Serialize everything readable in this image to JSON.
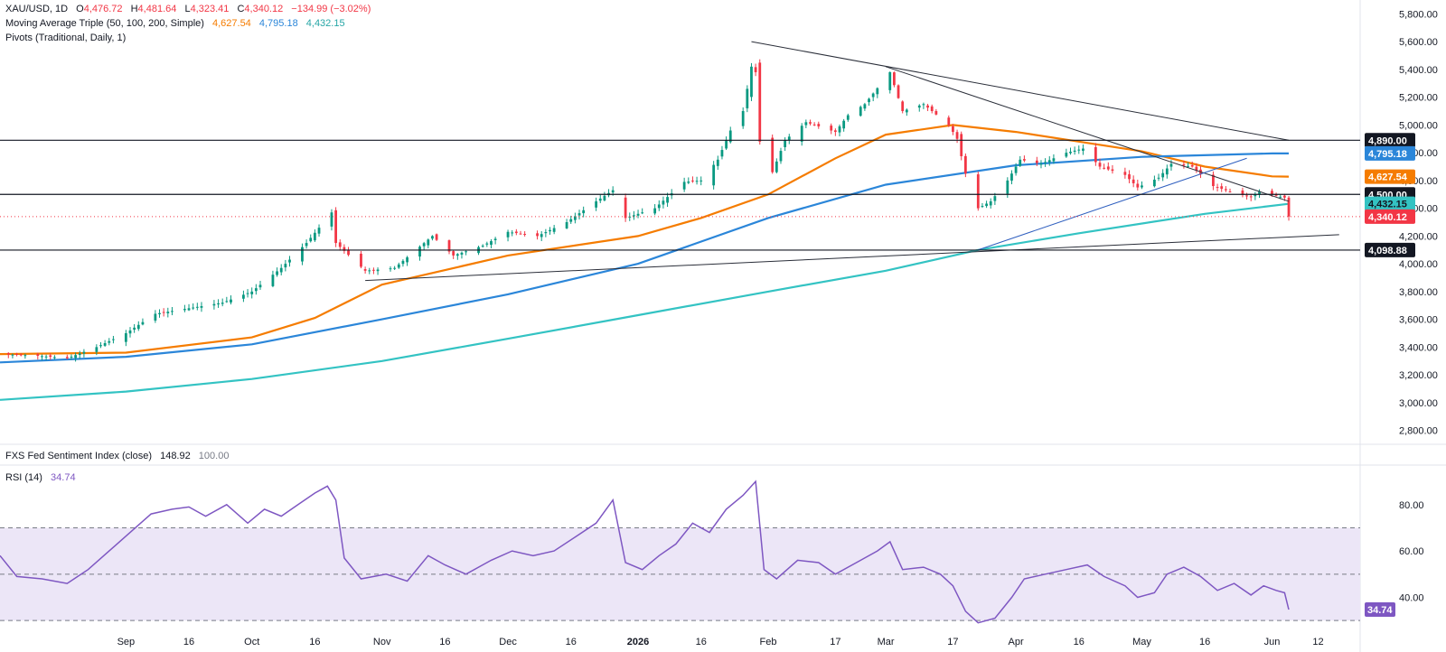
{
  "legend": {
    "symbol": "XAU/USD, 1D",
    "o_label": "O",
    "o_val": "4,476.72",
    "h_label": "H",
    "h_val": "4,481.64",
    "l_label": "L",
    "l_val": "4,323.41",
    "c_label": "C",
    "c_val": "4,340.12",
    "chg": "−134.99 (−3.02%)",
    "ma_name": "Moving Average Triple (50, 100, 200, Simple)",
    "ma50_val": "4,627.54",
    "ma100_val": "4,795.18",
    "ma200_val": "4,432.15",
    "pivots": "Pivots (Traditional, Daily, 1)",
    "fxs_name": "FXS Fed Sentiment Index (close)",
    "fxs_val1": "148.92",
    "fxs_val2": "100.00",
    "rsi_name": "RSI (14)",
    "rsi_val": "34.74"
  },
  "colors": {
    "up": "#089981",
    "down": "#f23645",
    "ma50": "#f57c00",
    "ma100": "#2b86d9",
    "ma200": "#33c3c3",
    "rsi": "#7e57c2",
    "rsi_band": "#ece6f7",
    "trend": "#2a2e39",
    "trend_blue": "#2f5fbf"
  },
  "chart_data": [
    {
      "type": "candlestick",
      "title": "XAU/USD, 1D",
      "ylim": [
        2700,
        5900
      ],
      "y_ticks": [
        2800,
        3000,
        3200,
        3400,
        3600,
        3800,
        4000,
        4200,
        4400,
        4600,
        4800,
        5000,
        5200,
        5400,
        5600,
        5800
      ],
      "y_tick_labels": [
        "2,800.00",
        "3,000.00",
        "3,200.00",
        "3,400.00",
        "3,600.00",
        "3,800.00",
        "4,000.00",
        "4,200.00",
        "4,400.00",
        "4,600.00",
        "4,800.00",
        "5,000.00",
        "5,200.00",
        "5,400.00",
        "5,600.00",
        "5,800.00"
      ],
      "x_tick_labels": [
        "Sep",
        "16",
        "Oct",
        "16",
        "Nov",
        "16",
        "Dec",
        "16",
        "2026",
        "16",
        "Feb",
        "17",
        "Mar",
        "17",
        "Apr",
        "16",
        "May",
        "16",
        "Jun",
        "12"
      ],
      "x_tick_dates": [
        "2025-09-01",
        "2025-09-16",
        "2025-10-01",
        "2025-10-16",
        "2025-11-01",
        "2025-11-16",
        "2025-12-01",
        "2025-12-16",
        "2026-01-01",
        "2026-01-16",
        "2026-02-01",
        "2026-02-17",
        "2026-03-01",
        "2026-03-17",
        "2026-04-01",
        "2026-04-16",
        "2026-05-01",
        "2026-05-16",
        "2026-06-01",
        "2026-06-12"
      ],
      "x_range": [
        "2025-08-02",
        "2026-06-22"
      ],
      "last_date": "2026-06-05",
      "close_path": [
        [
          "2025-08-02",
          3350
        ],
        [
          "2025-08-10",
          3340
        ],
        [
          "2025-08-18",
          3320
        ],
        [
          "2025-08-25",
          3400
        ],
        [
          "2025-09-01",
          3500
        ],
        [
          "2025-09-08",
          3640
        ],
        [
          "2025-09-16",
          3680
        ],
        [
          "2025-09-24",
          3720
        ],
        [
          "2025-10-01",
          3800
        ],
        [
          "2025-10-08",
          3970
        ],
        [
          "2025-10-14",
          4150
        ],
        [
          "2025-10-20",
          4370
        ],
        [
          "2025-10-21",
          4150
        ],
        [
          "2025-10-28",
          3950
        ],
        [
          "2025-11-04",
          3970
        ],
        [
          "2025-11-13",
          4200
        ],
        [
          "2025-11-18",
          4060
        ],
        [
          "2025-11-25",
          4130
        ],
        [
          "2025-12-01",
          4230
        ],
        [
          "2025-12-08",
          4200
        ],
        [
          "2025-12-15",
          4300
        ],
        [
          "2025-12-22",
          4450
        ],
        [
          "2025-12-26",
          4530
        ],
        [
          "2025-12-29",
          4330
        ],
        [
          "2026-01-05",
          4400
        ],
        [
          "2026-01-12",
          4590
        ],
        [
          "2026-01-16",
          4600
        ],
        [
          "2026-01-20",
          4750
        ],
        [
          "2026-01-23",
          4960
        ],
        [
          "2026-01-26",
          5100
        ],
        [
          "2026-01-28",
          5420
        ],
        [
          "2026-01-29",
          5380
        ],
        [
          "2026-01-30",
          4880
        ],
        [
          "2026-02-02",
          4660
        ],
        [
          "2026-02-05",
          4890
        ],
        [
          "2026-02-10",
          5020
        ],
        [
          "2026-02-17",
          4950
        ],
        [
          "2026-02-20",
          5070
        ],
        [
          "2026-02-24",
          5150
        ],
        [
          "2026-03-02",
          5380
        ],
        [
          "2026-03-05",
          5100
        ],
        [
          "2026-03-10",
          5150
        ],
        [
          "2026-03-16",
          5000
        ],
        [
          "2026-03-18",
          4900
        ],
        [
          "2026-03-20",
          4650
        ],
        [
          "2026-03-23",
          4400
        ],
        [
          "2026-03-26",
          4450
        ],
        [
          "2026-03-30",
          4600
        ],
        [
          "2026-04-02",
          4750
        ],
        [
          "2026-04-07",
          4720
        ],
        [
          "2026-04-13",
          4800
        ],
        [
          "2026-04-17",
          4830
        ],
        [
          "2026-04-21",
          4700
        ],
        [
          "2026-04-27",
          4640
        ],
        [
          "2026-04-30",
          4550
        ],
        [
          "2026-05-05",
          4620
        ],
        [
          "2026-05-08",
          4720
        ],
        [
          "2026-05-13",
          4700
        ],
        [
          "2026-05-18",
          4560
        ],
        [
          "2026-05-22",
          4520
        ],
        [
          "2026-05-27",
          4480
        ],
        [
          "2026-05-29",
          4520
        ],
        [
          "2026-06-02",
          4490
        ],
        [
          "2026-06-04",
          4477
        ],
        [
          "2026-06-05",
          4340
        ]
      ],
      "moving_averages": [
        {
          "name": "MA 50",
          "color": "#f57c00",
          "values": [
            [
              "2025-08-02",
              3350
            ],
            [
              "2025-09-01",
              3360
            ],
            [
              "2025-10-01",
              3470
            ],
            [
              "2025-10-16",
              3610
            ],
            [
              "2025-11-01",
              3850
            ],
            [
              "2025-12-01",
              4060
            ],
            [
              "2026-01-01",
              4200
            ],
            [
              "2026-01-16",
              4330
            ],
            [
              "2026-02-01",
              4500
            ],
            [
              "2026-02-17",
              4760
            ],
            [
              "2026-03-01",
              4930
            ],
            [
              "2026-03-17",
              5000
            ],
            [
              "2026-04-01",
              4950
            ],
            [
              "2026-04-16",
              4880
            ],
            [
              "2026-05-01",
              4810
            ],
            [
              "2026-05-16",
              4700
            ],
            [
              "2026-06-01",
              4630
            ],
            [
              "2026-06-05",
              4627.54
            ]
          ]
        },
        {
          "name": "MA 100",
          "color": "#2b86d9",
          "values": [
            [
              "2025-08-02",
              3290
            ],
            [
              "2025-09-01",
              3330
            ],
            [
              "2025-10-01",
              3420
            ],
            [
              "2025-11-01",
              3600
            ],
            [
              "2025-12-01",
              3780
            ],
            [
              "2026-01-01",
              4000
            ],
            [
              "2026-02-01",
              4330
            ],
            [
              "2026-03-01",
              4570
            ],
            [
              "2026-04-01",
              4710
            ],
            [
              "2026-05-01",
              4770
            ],
            [
              "2026-06-01",
              4795
            ],
            [
              "2026-06-05",
              4795.18
            ]
          ]
        },
        {
          "name": "MA 200",
          "color": "#33c3c3",
          "values": [
            [
              "2025-08-02",
              3020
            ],
            [
              "2025-09-01",
              3080
            ],
            [
              "2025-10-01",
              3170
            ],
            [
              "2025-11-01",
              3300
            ],
            [
              "2025-12-01",
              3460
            ],
            [
              "2026-01-01",
              3630
            ],
            [
              "2026-02-01",
              3800
            ],
            [
              "2026-03-01",
              3950
            ],
            [
              "2026-03-23",
              4100
            ],
            [
              "2026-04-16",
              4220
            ],
            [
              "2026-05-16",
              4360
            ],
            [
              "2026-06-05",
              4432.15
            ]
          ]
        }
      ],
      "price_labels": [
        {
          "value": 4890,
          "text": "4,890.00",
          "style": "black"
        },
        {
          "value": 4795.18,
          "text": "4,795.18",
          "style": "ma100"
        },
        {
          "value": 4627.54,
          "text": "4,627.54",
          "style": "ma50"
        },
        {
          "value": 4500,
          "text": "4,500.00",
          "style": "black"
        },
        {
          "value": 4432.15,
          "text": "4,432.15",
          "style": "ma200"
        },
        {
          "value": 4340.12,
          "text": "4,340.12",
          "style": "last"
        },
        {
          "value": 4098.88,
          "text": "4,098.88",
          "style": "black"
        }
      ],
      "horizontal_lines": [
        4890,
        4500,
        4098.88
      ],
      "trendlines": [
        {
          "from": [
            "2026-01-28",
            5600
          ],
          "to": [
            "2026-06-05",
            4890
          ],
          "color": "#2a2e39"
        },
        {
          "from": [
            "2026-03-01",
            5420
          ],
          "to": [
            "2026-06-05",
            4450
          ],
          "color": "#2a2e39"
        },
        {
          "from": [
            "2025-10-28",
            3880
          ],
          "to": [
            "2026-06-17",
            4210
          ],
          "color": "#2a2e39"
        },
        {
          "from": [
            "2026-03-23",
            4100
          ],
          "to": [
            "2026-05-26",
            4760
          ],
          "color": "#2f5fbf"
        }
      ]
    },
    {
      "type": "line",
      "title": "RSI (14)",
      "ylim": [
        25,
        92
      ],
      "levels": [
        30,
        50,
        70
      ],
      "y_ticks": [
        40,
        60,
        80
      ],
      "y_tick_labels": [
        "40.00",
        "60.00",
        "80.00"
      ],
      "last_value": 34.74,
      "last_label": "34.74",
      "values": [
        [
          "2025-08-02",
          58
        ],
        [
          "2025-08-06",
          49
        ],
        [
          "2025-08-12",
          48
        ],
        [
          "2025-08-18",
          46
        ],
        [
          "2025-08-23",
          52
        ],
        [
          "2025-08-28",
          60
        ],
        [
          "2025-09-02",
          68
        ],
        [
          "2025-09-07",
          76
        ],
        [
          "2025-09-12",
          78
        ],
        [
          "2025-09-16",
          79
        ],
        [
          "2025-09-20",
          75
        ],
        [
          "2025-09-25",
          80
        ],
        [
          "2025-09-30",
          72
        ],
        [
          "2025-10-04",
          78
        ],
        [
          "2025-10-08",
          75
        ],
        [
          "2025-10-12",
          80
        ],
        [
          "2025-10-16",
          85
        ],
        [
          "2025-10-19",
          88
        ],
        [
          "2025-10-21",
          82
        ],
        [
          "2025-10-23",
          57
        ],
        [
          "2025-10-27",
          48
        ],
        [
          "2025-11-02",
          50
        ],
        [
          "2025-11-07",
          47
        ],
        [
          "2025-11-12",
          58
        ],
        [
          "2025-11-16",
          54
        ],
        [
          "2025-11-21",
          50
        ],
        [
          "2025-11-27",
          56
        ],
        [
          "2025-12-02",
          60
        ],
        [
          "2025-12-07",
          58
        ],
        [
          "2025-12-12",
          60
        ],
        [
          "2025-12-17",
          66
        ],
        [
          "2025-12-22",
          72
        ],
        [
          "2025-12-26",
          82
        ],
        [
          "2025-12-29",
          55
        ],
        [
          "2026-01-02",
          52
        ],
        [
          "2026-01-06",
          58
        ],
        [
          "2026-01-10",
          63
        ],
        [
          "2026-01-14",
          72
        ],
        [
          "2026-01-18",
          68
        ],
        [
          "2026-01-22",
          78
        ],
        [
          "2026-01-26",
          84
        ],
        [
          "2026-01-29",
          90
        ],
        [
          "2026-01-31",
          52
        ],
        [
          "2026-02-03",
          48
        ],
        [
          "2026-02-08",
          56
        ],
        [
          "2026-02-13",
          55
        ],
        [
          "2026-02-17",
          50
        ],
        [
          "2026-02-22",
          55
        ],
        [
          "2026-02-27",
          60
        ],
        [
          "2026-03-02",
          64
        ],
        [
          "2026-03-05",
          52
        ],
        [
          "2026-03-10",
          53
        ],
        [
          "2026-03-14",
          50
        ],
        [
          "2026-03-17",
          45
        ],
        [
          "2026-03-20",
          34
        ],
        [
          "2026-03-23",
          29
        ],
        [
          "2026-03-27",
          31
        ],
        [
          "2026-03-31",
          40
        ],
        [
          "2026-04-03",
          48
        ],
        [
          "2026-04-08",
          50
        ],
        [
          "2026-04-13",
          52
        ],
        [
          "2026-04-18",
          54
        ],
        [
          "2026-04-22",
          49
        ],
        [
          "2026-04-27",
          45
        ],
        [
          "2026-04-30",
          40
        ],
        [
          "2026-05-04",
          42
        ],
        [
          "2026-05-07",
          50
        ],
        [
          "2026-05-11",
          53
        ],
        [
          "2026-05-15",
          49
        ],
        [
          "2026-05-19",
          43
        ],
        [
          "2026-05-23",
          46
        ],
        [
          "2026-05-27",
          41
        ],
        [
          "2026-05-30",
          45
        ],
        [
          "2026-06-02",
          43
        ],
        [
          "2026-06-04",
          42
        ],
        [
          "2026-06-05",
          34.74
        ]
      ]
    }
  ]
}
